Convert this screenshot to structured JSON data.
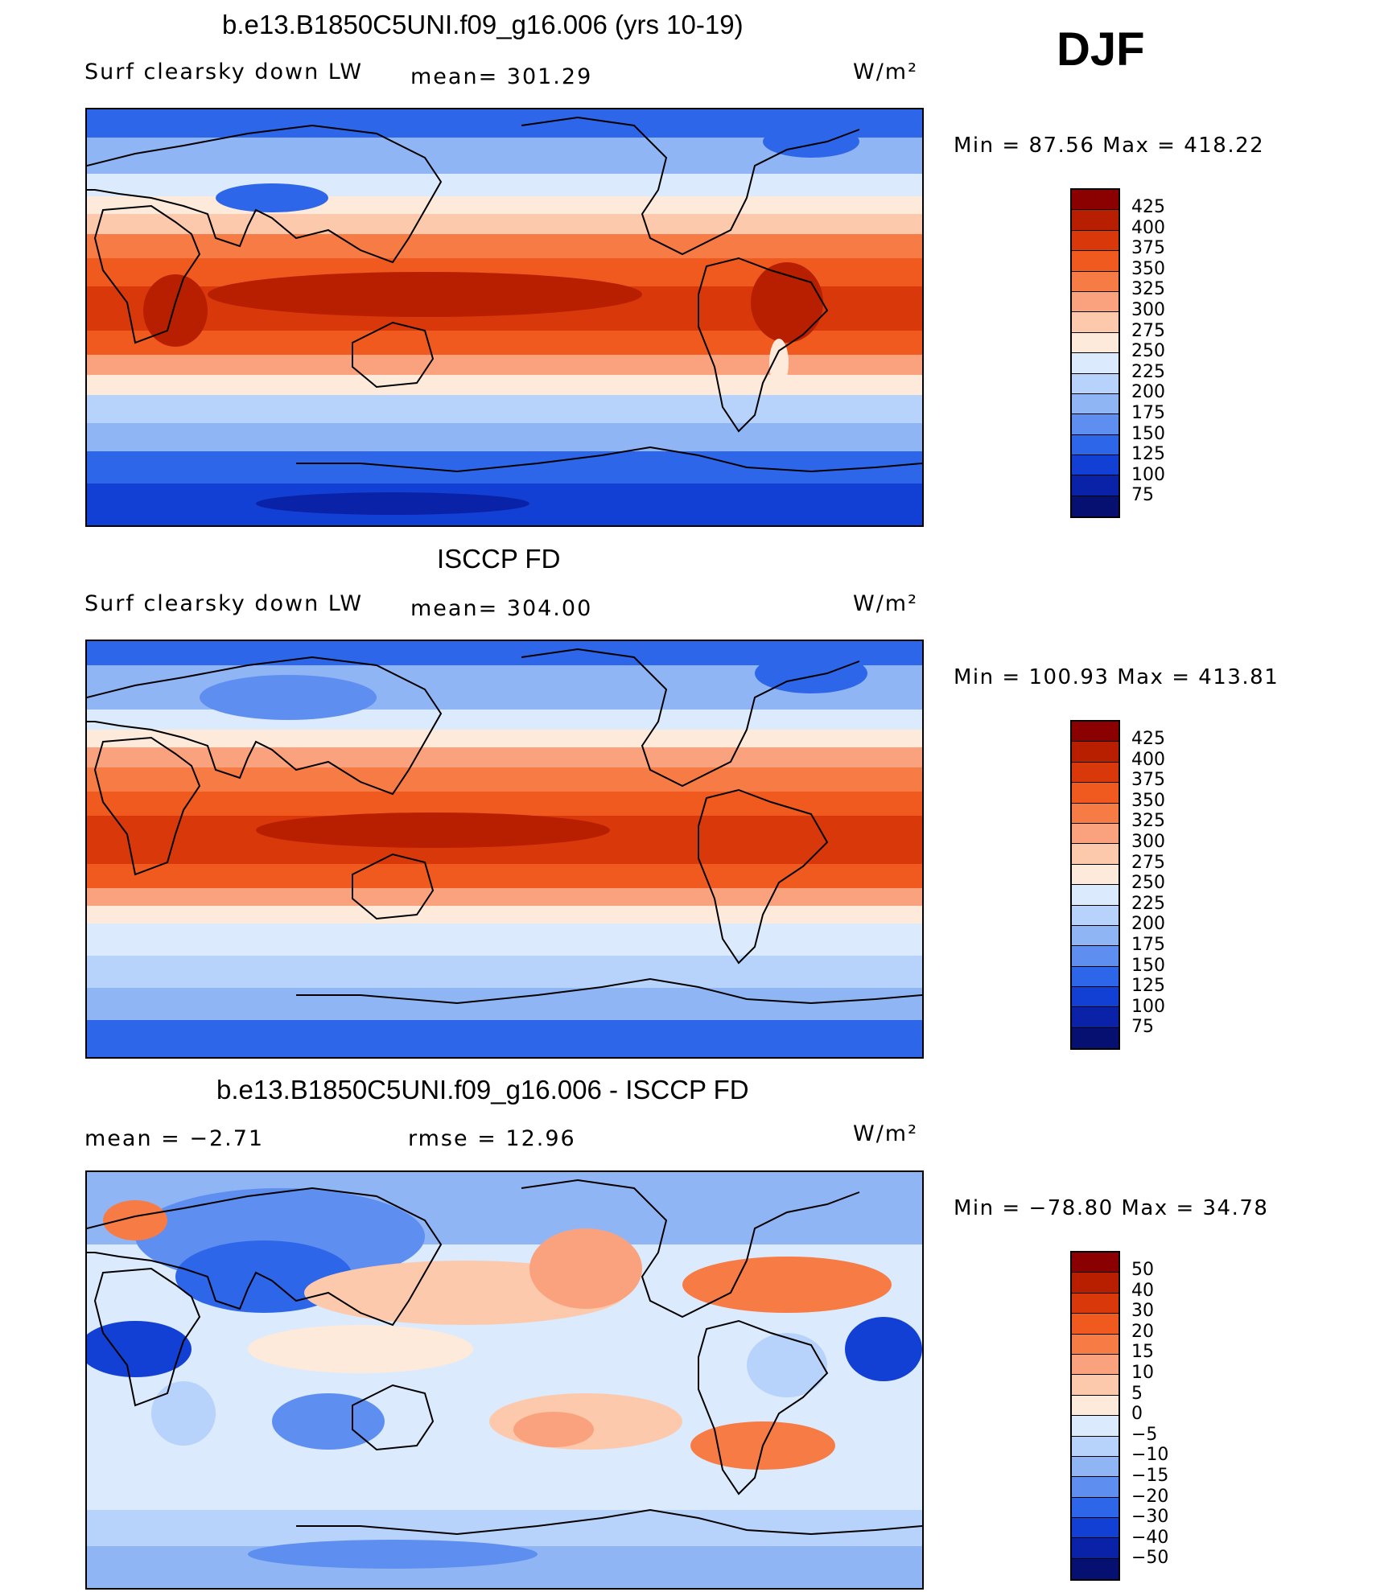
{
  "season": "DJF",
  "panels": [
    {
      "id": "model",
      "title": "b.e13.B1850C5UNI.f09_g16.006 (yrs 10-19)",
      "variable": "Surf clearsky down LW",
      "mean_text": "mean= 301.29",
      "units": "W/m²",
      "minmax_text": "Min =  87.56 Max = 418.22",
      "levels": [
        "425",
        "400",
        "375",
        "350",
        "325",
        "300",
        "275",
        "250",
        "225",
        "200",
        "175",
        "150",
        "125",
        "100",
        "75"
      ],
      "colors": [
        "#8b0000",
        "#b81f00",
        "#d9380a",
        "#f05a1e",
        "#f77b45",
        "#faa27e",
        "#fdc9ac",
        "#fdeadb",
        "#dbeafc",
        "#b8d3fb",
        "#90b5f5",
        "#5e8ef0",
        "#2e66ea",
        "#1340d4",
        "#0a22a8",
        "#061070"
      ]
    },
    {
      "id": "obs",
      "title": "ISCCP FD",
      "variable": "Surf clearsky down LW",
      "mean_text": "mean= 304.00",
      "units": "W/m²",
      "minmax_text": "Min = 100.93 Max = 413.81",
      "levels": [
        "425",
        "400",
        "375",
        "350",
        "325",
        "300",
        "275",
        "250",
        "225",
        "200",
        "175",
        "150",
        "125",
        "100",
        "75"
      ],
      "colors": [
        "#8b0000",
        "#b81f00",
        "#d9380a",
        "#f05a1e",
        "#f77b45",
        "#faa27e",
        "#fdc9ac",
        "#fdeadb",
        "#dbeafc",
        "#b8d3fb",
        "#90b5f5",
        "#5e8ef0",
        "#2e66ea",
        "#1340d4",
        "#0a22a8",
        "#061070"
      ]
    },
    {
      "id": "diff",
      "title": "b.e13.B1850C5UNI.f09_g16.006 - ISCCP FD",
      "variable": "mean =   −2.71",
      "mean_text": "rmse =   12.96",
      "units": "W/m²",
      "minmax_text": "Min = −78.80 Max =  34.78",
      "levels": [
        "50",
        "40",
        "30",
        "20",
        "15",
        "10",
        "5",
        "0",
        "−5",
        "−10",
        "−15",
        "−20",
        "−30",
        "−40",
        "−50"
      ],
      "colors": [
        "#8b0000",
        "#b81f00",
        "#d9380a",
        "#f05a1e",
        "#f77b45",
        "#faa27e",
        "#fdc9ac",
        "#fdeadb",
        "#dbeafc",
        "#b8d3fb",
        "#90b5f5",
        "#5e8ef0",
        "#2e66ea",
        "#1340d4",
        "#0a22a8",
        "#061070"
      ]
    }
  ]
}
